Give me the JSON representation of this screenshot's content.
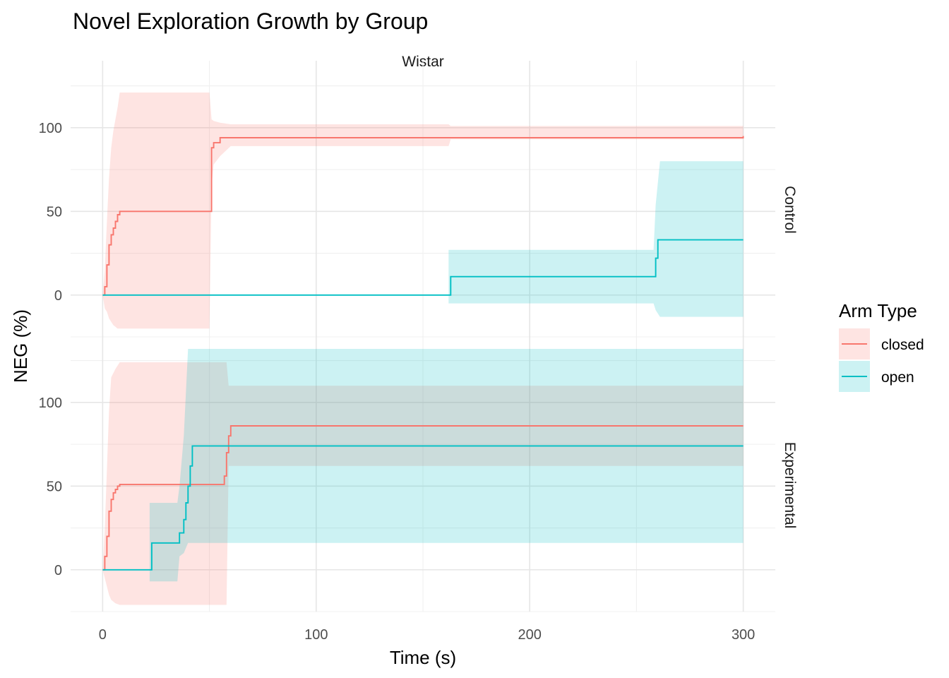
{
  "chart_data": {
    "type": "line",
    "title": "Novel Exploration Growth by Group",
    "xlabel": "Time (s)",
    "ylabel": "NEG (%)",
    "xlim": [
      -15,
      315
    ],
    "ylim": [
      -25,
      140
    ],
    "x_ticks": [
      0,
      100,
      200,
      300
    ],
    "y_ticks": [
      0,
      50,
      100
    ],
    "column_strip": "Wistar",
    "grid": true,
    "legend": {
      "title": "Arm Type",
      "position": "right",
      "entries": [
        {
          "label": "closed",
          "color": "#F8766D"
        },
        {
          "label": "open",
          "color": "#00BFC4"
        }
      ]
    },
    "panels": [
      {
        "label": "Control",
        "series": [
          {
            "name": "closed",
            "color": "#F8766D",
            "x": [
              0,
              1,
              2,
              3,
              4,
              5,
              6,
              7,
              8,
              50,
              51,
              52,
              55,
              300
            ],
            "y": [
              0,
              5,
              18,
              30,
              36,
              40,
              44,
              48,
              50,
              50,
              88,
              91,
              94,
              95
            ],
            "ribbon": [
              {
                "x": 0,
                "lo": 0,
                "hi": 0
              },
              {
                "x": 1,
                "lo": -8,
                "hi": 15
              },
              {
                "x": 2,
                "lo": -10,
                "hi": 44
              },
              {
                "x": 3,
                "lo": -14,
                "hi": 70
              },
              {
                "x": 4,
                "lo": -16,
                "hi": 88
              },
              {
                "x": 5,
                "lo": -18,
                "hi": 98
              },
              {
                "x": 6,
                "lo": -19,
                "hi": 105
              },
              {
                "x": 7,
                "lo": -20,
                "hi": 112
              },
              {
                "x": 8,
                "lo": -20,
                "hi": 121
              },
              {
                "x": 50,
                "lo": -20,
                "hi": 121
              },
              {
                "x": 51,
                "lo": 65,
                "hi": 105
              },
              {
                "x": 52,
                "lo": 78,
                "hi": 104
              },
              {
                "x": 55,
                "lo": 83,
                "hi": 103
              },
              {
                "x": 60,
                "lo": 89,
                "hi": 102
              },
              {
                "x": 162,
                "lo": 89,
                "hi": 102
              },
              {
                "x": 163,
                "lo": 93,
                "hi": 101
              },
              {
                "x": 300,
                "lo": 93,
                "hi": 101
              }
            ]
          },
          {
            "name": "open",
            "color": "#00BFC4",
            "x": [
              0,
              162,
              163,
              258,
              259,
              260,
              261,
              300
            ],
            "y": [
              0,
              0,
              11,
              11,
              22,
              33,
              33,
              33
            ],
            "ribbon": [
              {
                "x": 162,
                "lo": -5,
                "hi": 27
              },
              {
                "x": 258,
                "lo": -5,
                "hi": 27
              },
              {
                "x": 259,
                "lo": -9,
                "hi": 54
              },
              {
                "x": 261,
                "lo": -13,
                "hi": 80
              },
              {
                "x": 300,
                "lo": -13,
                "hi": 80
              }
            ]
          }
        ]
      },
      {
        "label": "Experimental",
        "series": [
          {
            "name": "closed",
            "color": "#F8766D",
            "x": [
              0,
              1,
              2,
              3,
              4,
              5,
              6,
              7,
              8,
              56,
              57,
              58,
              59,
              60,
              300
            ],
            "y": [
              0,
              8,
              20,
              35,
              42,
              46,
              48,
              50,
              51,
              51,
              56,
              70,
              80,
              86,
              86
            ],
            "ribbon": [
              {
                "x": 0,
                "lo": 0,
                "hi": 0
              },
              {
                "x": 1,
                "lo": -5,
                "hi": 25
              },
              {
                "x": 2,
                "lo": -10,
                "hi": 60
              },
              {
                "x": 3,
                "lo": -15,
                "hi": 95
              },
              {
                "x": 4,
                "lo": -18,
                "hi": 115
              },
              {
                "x": 6,
                "lo": -20,
                "hi": 120
              },
              {
                "x": 8,
                "lo": -21,
                "hi": 124
              },
              {
                "x": 57,
                "lo": -21,
                "hi": 124
              },
              {
                "x": 58,
                "lo": -21,
                "hi": 124
              },
              {
                "x": 59,
                "lo": 62,
                "hi": 110
              },
              {
                "x": 300,
                "lo": 62,
                "hi": 110
              }
            ]
          },
          {
            "name": "open",
            "color": "#00BFC4",
            "x": [
              0,
              22,
              23,
              35,
              36,
              37,
              38,
              39,
              40,
              41,
              42,
              300
            ],
            "y": [
              0,
              0,
              16,
              16,
              22,
              22,
              30,
              40,
              50,
              62,
              74,
              74
            ],
            "ribbon": [
              {
                "x": 22,
                "lo": -7,
                "hi": 40
              },
              {
                "x": 35,
                "lo": -7,
                "hi": 40
              },
              {
                "x": 36,
                "lo": 8,
                "hi": 50
              },
              {
                "x": 38,
                "lo": 10,
                "hi": 80
              },
              {
                "x": 40,
                "lo": 16,
                "hi": 132
              },
              {
                "x": 300,
                "lo": 16,
                "hi": 132
              }
            ]
          }
        ]
      }
    ]
  }
}
